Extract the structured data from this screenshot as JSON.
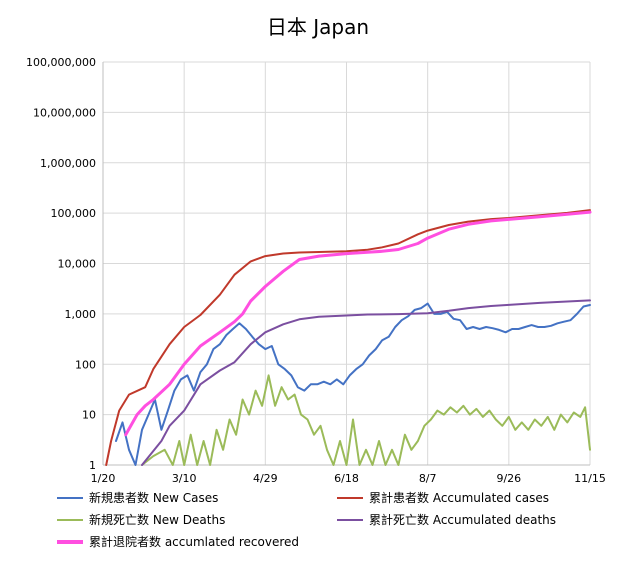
{
  "chart_data": {
    "type": "line",
    "title": "日本 Japan",
    "y_scale": "log",
    "ylim": [
      1,
      100000000
    ],
    "y_ticks": [
      1,
      10,
      100,
      1000,
      10000,
      100000,
      1000000,
      10000000,
      100000000
    ],
    "y_tick_labels": [
      "1",
      "10",
      "100",
      "1,000",
      "10,000",
      "100,000",
      "1,000,000",
      "10,000,000",
      "100,000,000"
    ],
    "xlim": [
      "2020-01-20",
      "2020-11-15"
    ],
    "x_ticks": [
      "2020-01-20",
      "2020-03-10",
      "2020-04-29",
      "2020-06-18",
      "2020-08-07",
      "2020-09-26",
      "2020-11-15"
    ],
    "x_tick_labels": [
      "1/20",
      "3/10",
      "4/29",
      "6/18",
      "8/7",
      "9/26",
      "11/15"
    ],
    "grid": true,
    "legend_position": "bottom",
    "series": [
      {
        "name": "新規患者数 New Cases",
        "color": "#4472c4",
        "width": 2,
        "points": [
          [
            "2020-01-28",
            3
          ],
          [
            "2020-02-01",
            7
          ],
          [
            "2020-02-05",
            2
          ],
          [
            "2020-02-09",
            1
          ],
          [
            "2020-02-13",
            5
          ],
          [
            "2020-02-17",
            10
          ],
          [
            "2020-02-21",
            20
          ],
          [
            "2020-02-25",
            5
          ],
          [
            "2020-02-29",
            12
          ],
          [
            "2020-03-04",
            30
          ],
          [
            "2020-03-08",
            50
          ],
          [
            "2020-03-12",
            60
          ],
          [
            "2020-03-16",
            30
          ],
          [
            "2020-03-20",
            70
          ],
          [
            "2020-03-24",
            100
          ],
          [
            "2020-03-28",
            200
          ],
          [
            "2020-04-01",
            250
          ],
          [
            "2020-04-05",
            380
          ],
          [
            "2020-04-09",
            500
          ],
          [
            "2020-04-13",
            650
          ],
          [
            "2020-04-17",
            500
          ],
          [
            "2020-04-21",
            350
          ],
          [
            "2020-04-25",
            250
          ],
          [
            "2020-04-29",
            200
          ],
          [
            "2020-05-03",
            230
          ],
          [
            "2020-05-07",
            100
          ],
          [
            "2020-05-11",
            80
          ],
          [
            "2020-05-15",
            60
          ],
          [
            "2020-05-19",
            35
          ],
          [
            "2020-05-23",
            30
          ],
          [
            "2020-05-27",
            40
          ],
          [
            "2020-05-31",
            40
          ],
          [
            "2020-06-04",
            45
          ],
          [
            "2020-06-08",
            40
          ],
          [
            "2020-06-12",
            50
          ],
          [
            "2020-06-16",
            40
          ],
          [
            "2020-06-20",
            60
          ],
          [
            "2020-06-24",
            80
          ],
          [
            "2020-06-28",
            100
          ],
          [
            "2020-07-02",
            150
          ],
          [
            "2020-07-06",
            200
          ],
          [
            "2020-07-10",
            300
          ],
          [
            "2020-07-14",
            350
          ],
          [
            "2020-07-18",
            550
          ],
          [
            "2020-07-22",
            750
          ],
          [
            "2020-07-26",
            900
          ],
          [
            "2020-07-30",
            1200
          ],
          [
            "2020-08-03",
            1300
          ],
          [
            "2020-08-07",
            1600
          ],
          [
            "2020-08-11",
            1000
          ],
          [
            "2020-08-15",
            1000
          ],
          [
            "2020-08-19",
            1100
          ],
          [
            "2020-08-23",
            800
          ],
          [
            "2020-08-27",
            750
          ],
          [
            "2020-08-31",
            500
          ],
          [
            "2020-09-04",
            550
          ],
          [
            "2020-09-08",
            500
          ],
          [
            "2020-09-12",
            550
          ],
          [
            "2020-09-16",
            520
          ],
          [
            "2020-09-20",
            480
          ],
          [
            "2020-09-24",
            430
          ],
          [
            "2020-09-28",
            500
          ],
          [
            "2020-10-02",
            500
          ],
          [
            "2020-10-06",
            550
          ],
          [
            "2020-10-10",
            600
          ],
          [
            "2020-10-14",
            550
          ],
          [
            "2020-10-18",
            550
          ],
          [
            "2020-10-22",
            580
          ],
          [
            "2020-10-26",
            650
          ],
          [
            "2020-10-30",
            700
          ],
          [
            "2020-11-03",
            750
          ],
          [
            "2020-11-07",
            1000
          ],
          [
            "2020-11-11",
            1400
          ],
          [
            "2020-11-15",
            1500
          ]
        ]
      },
      {
        "name": "累計患者数 Accumulated cases",
        "color": "#c0392b",
        "width": 2,
        "points": [
          [
            "2020-01-22",
            1
          ],
          [
            "2020-01-25",
            3
          ],
          [
            "2020-01-30",
            12
          ],
          [
            "2020-02-05",
            25
          ],
          [
            "2020-02-15",
            35
          ],
          [
            "2020-02-20",
            80
          ],
          [
            "2020-03-01",
            250
          ],
          [
            "2020-03-10",
            550
          ],
          [
            "2020-03-20",
            950
          ],
          [
            "2020-04-01",
            2400
          ],
          [
            "2020-04-10",
            6000
          ],
          [
            "2020-04-20",
            11000
          ],
          [
            "2020-04-29",
            14000
          ],
          [
            "2020-05-10",
            15800
          ],
          [
            "2020-05-20",
            16500
          ],
          [
            "2020-06-01",
            16900
          ],
          [
            "2020-06-18",
            17500
          ],
          [
            "2020-07-01",
            18800
          ],
          [
            "2020-07-10",
            21000
          ],
          [
            "2020-07-20",
            25000
          ],
          [
            "2020-08-01",
            38000
          ],
          [
            "2020-08-07",
            45000
          ],
          [
            "2020-08-20",
            58000
          ],
          [
            "2020-09-01",
            68000
          ],
          [
            "2020-09-15",
            76000
          ],
          [
            "2020-09-26",
            80000
          ],
          [
            "2020-10-15",
            91000
          ],
          [
            "2020-11-01",
            101000
          ],
          [
            "2020-11-15",
            115000
          ]
        ]
      },
      {
        "name": "新規死亡数 New Deaths",
        "color": "#9bbb59",
        "width": 2,
        "points": [
          [
            "2020-02-13",
            1
          ],
          [
            "2020-02-20",
            1.5
          ],
          [
            "2020-02-27",
            2
          ],
          [
            "2020-03-03",
            1
          ],
          [
            "2020-03-07",
            3
          ],
          [
            "2020-03-10",
            1
          ],
          [
            "2020-03-14",
            4
          ],
          [
            "2020-03-18",
            1
          ],
          [
            "2020-03-22",
            3
          ],
          [
            "2020-03-26",
            1
          ],
          [
            "2020-03-30",
            5
          ],
          [
            "2020-04-03",
            2
          ],
          [
            "2020-04-07",
            8
          ],
          [
            "2020-04-11",
            4
          ],
          [
            "2020-04-15",
            20
          ],
          [
            "2020-04-19",
            10
          ],
          [
            "2020-04-23",
            30
          ],
          [
            "2020-04-27",
            15
          ],
          [
            "2020-05-01",
            60
          ],
          [
            "2020-05-05",
            15
          ],
          [
            "2020-05-09",
            35
          ],
          [
            "2020-05-13",
            20
          ],
          [
            "2020-05-17",
            25
          ],
          [
            "2020-05-21",
            10
          ],
          [
            "2020-05-25",
            8
          ],
          [
            "2020-05-29",
            4
          ],
          [
            "2020-06-02",
            6
          ],
          [
            "2020-06-06",
            2
          ],
          [
            "2020-06-10",
            1
          ],
          [
            "2020-06-14",
            3
          ],
          [
            "2020-06-18",
            1
          ],
          [
            "2020-06-22",
            8
          ],
          [
            "2020-06-26",
            1
          ],
          [
            "2020-06-30",
            2
          ],
          [
            "2020-07-04",
            1
          ],
          [
            "2020-07-08",
            3
          ],
          [
            "2020-07-12",
            1
          ],
          [
            "2020-07-16",
            2
          ],
          [
            "2020-07-20",
            1
          ],
          [
            "2020-07-24",
            4
          ],
          [
            "2020-07-28",
            2
          ],
          [
            "2020-08-01",
            3
          ],
          [
            "2020-08-05",
            6
          ],
          [
            "2020-08-09",
            8
          ],
          [
            "2020-08-13",
            12
          ],
          [
            "2020-08-17",
            10
          ],
          [
            "2020-08-21",
            14
          ],
          [
            "2020-08-25",
            11
          ],
          [
            "2020-08-29",
            15
          ],
          [
            "2020-09-02",
            10
          ],
          [
            "2020-09-06",
            13
          ],
          [
            "2020-09-10",
            9
          ],
          [
            "2020-09-14",
            12
          ],
          [
            "2020-09-18",
            8
          ],
          [
            "2020-09-22",
            6
          ],
          [
            "2020-09-26",
            9
          ],
          [
            "2020-09-30",
            5
          ],
          [
            "2020-10-04",
            7
          ],
          [
            "2020-10-08",
            5
          ],
          [
            "2020-10-12",
            8
          ],
          [
            "2020-10-16",
            6
          ],
          [
            "2020-10-20",
            9
          ],
          [
            "2020-10-24",
            5
          ],
          [
            "2020-10-28",
            10
          ],
          [
            "2020-11-01",
            7
          ],
          [
            "2020-11-05",
            11
          ],
          [
            "2020-11-09",
            9
          ],
          [
            "2020-11-12",
            14
          ],
          [
            "2020-11-15",
            2
          ]
        ]
      },
      {
        "name": "累計死亡数 Accumulated deaths",
        "color": "#7b4fa0",
        "width": 2,
        "points": [
          [
            "2020-02-13",
            1
          ],
          [
            "2020-02-25",
            3
          ],
          [
            "2020-03-01",
            6
          ],
          [
            "2020-03-10",
            12
          ],
          [
            "2020-03-20",
            40
          ],
          [
            "2020-04-01",
            75
          ],
          [
            "2020-04-10",
            110
          ],
          [
            "2020-04-20",
            250
          ],
          [
            "2020-04-29",
            430
          ],
          [
            "2020-05-10",
            620
          ],
          [
            "2020-05-20",
            780
          ],
          [
            "2020-06-01",
            880
          ],
          [
            "2020-06-18",
            930
          ],
          [
            "2020-07-01",
            970
          ],
          [
            "2020-07-20",
            990
          ],
          [
            "2020-08-07",
            1030
          ],
          [
            "2020-08-20",
            1150
          ],
          [
            "2020-09-01",
            1300
          ],
          [
            "2020-09-15",
            1430
          ],
          [
            "2020-09-26",
            1510
          ],
          [
            "2020-10-15",
            1650
          ],
          [
            "2020-11-01",
            1760
          ],
          [
            "2020-11-15",
            1850
          ]
        ]
      },
      {
        "name": "累計退院者数 accumlated recovered",
        "color": "#ff4fe0",
        "width": 3,
        "points": [
          [
            "2020-02-03",
            4
          ],
          [
            "2020-02-10",
            10
          ],
          [
            "2020-02-15",
            15
          ],
          [
            "2020-02-20",
            20
          ],
          [
            "2020-03-01",
            40
          ],
          [
            "2020-03-10",
            100
          ],
          [
            "2020-03-20",
            230
          ],
          [
            "2020-04-01",
            430
          ],
          [
            "2020-04-10",
            700
          ],
          [
            "2020-04-15",
            1000
          ],
          [
            "2020-04-20",
            1800
          ],
          [
            "2020-04-29",
            3500
          ],
          [
            "2020-05-10",
            7000
          ],
          [
            "2020-05-20",
            12000
          ],
          [
            "2020-06-01",
            14000
          ],
          [
            "2020-06-18",
            15700
          ],
          [
            "2020-07-01",
            16800
          ],
          [
            "2020-07-10",
            17500
          ],
          [
            "2020-07-20",
            19000
          ],
          [
            "2020-08-01",
            25000
          ],
          [
            "2020-08-07",
            32000
          ],
          [
            "2020-08-20",
            48000
          ],
          [
            "2020-09-01",
            60000
          ],
          [
            "2020-09-15",
            70000
          ],
          [
            "2020-09-26",
            75000
          ],
          [
            "2020-10-15",
            85000
          ],
          [
            "2020-11-01",
            95000
          ],
          [
            "2020-11-15",
            105000
          ]
        ]
      }
    ]
  }
}
